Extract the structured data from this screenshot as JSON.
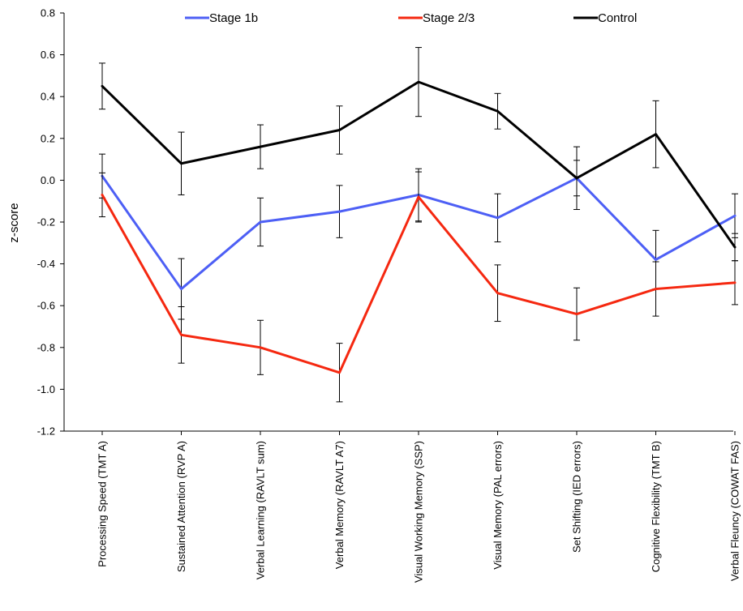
{
  "chart_data": {
    "type": "line",
    "ylabel": "z-score",
    "xlabel": "",
    "ylim": [
      -1.2,
      0.8
    ],
    "ytick_step": 0.2,
    "grid": false,
    "legend_position": "top",
    "categories": [
      "Processing Speed (TMT A)",
      "Sustained Attention (RVP A)",
      "Verbal Learning (RAVLT sum)",
      "Verbal Memory (RAVLT A7)",
      "Visual Working Memory (SSP)",
      "Visual Memory (PAL errors)",
      "Set Shifting (IED errors)",
      "Cognitive Flexibility (TMT B)",
      "Verbal Fleuncy (COWAT FAS)"
    ],
    "series": [
      {
        "name": "Stage 1b",
        "color": "#4d5ff5",
        "values": [
          0.02,
          -0.52,
          -0.2,
          -0.15,
          -0.07,
          -0.18,
          0.01,
          -0.38,
          -0.17
        ],
        "errors": [
          0.105,
          0.145,
          0.115,
          0.125,
          0.125,
          0.115,
          0.15,
          0.14,
          0.105
        ]
      },
      {
        "name": "Stage 2/3",
        "color": "#f52810",
        "values": [
          -0.07,
          -0.74,
          -0.8,
          -0.92,
          -0.08,
          -0.54,
          -0.64,
          -0.52,
          -0.49
        ],
        "errors": [
          0.105,
          0.135,
          0.13,
          0.14,
          0.12,
          0.135,
          0.125,
          0.13,
          0.105
        ]
      },
      {
        "name": "Control",
        "color": "#000000",
        "values": [
          0.45,
          0.08,
          0.16,
          0.24,
          0.47,
          0.33,
          0.01,
          0.22,
          -0.32
        ],
        "errors": [
          0.11,
          0.15,
          0.105,
          0.115,
          0.165,
          0.085,
          0.085,
          0.16,
          0.065
        ]
      }
    ]
  }
}
